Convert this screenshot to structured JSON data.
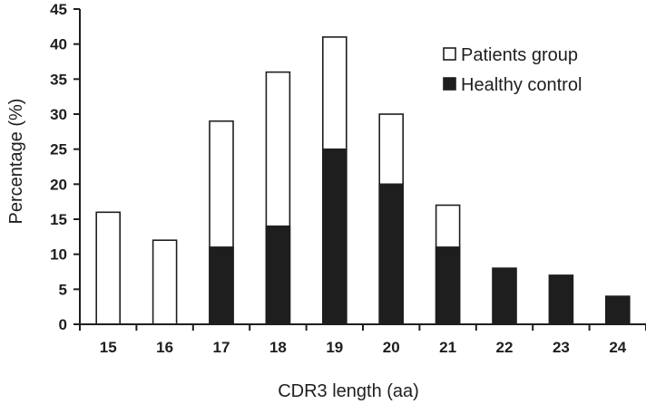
{
  "chart_data": {
    "type": "bar",
    "title": "",
    "xlabel": "CDR3 length (aa)",
    "ylabel": "Percentage (%)",
    "ylim": [
      0,
      45
    ],
    "yticks": [
      "0",
      "5",
      "10",
      "15",
      "20",
      "25",
      "30",
      "35",
      "40",
      "45"
    ],
    "categories": [
      "15",
      "16",
      "17",
      "18",
      "19",
      "20",
      "21",
      "22",
      "23",
      "24"
    ],
    "series": [
      {
        "name": "Patients group",
        "color": "#ffffff",
        "values": [
          16,
          12,
          29,
          36,
          41,
          30,
          17,
          0,
          0,
          0
        ]
      },
      {
        "name": "Healthy control",
        "color": "#1e1e1e",
        "values": [
          0,
          0,
          11,
          14,
          25,
          20,
          11,
          8,
          7,
          4
        ]
      }
    ],
    "overlay": true,
    "legend_position": "top-right",
    "grid": false
  }
}
